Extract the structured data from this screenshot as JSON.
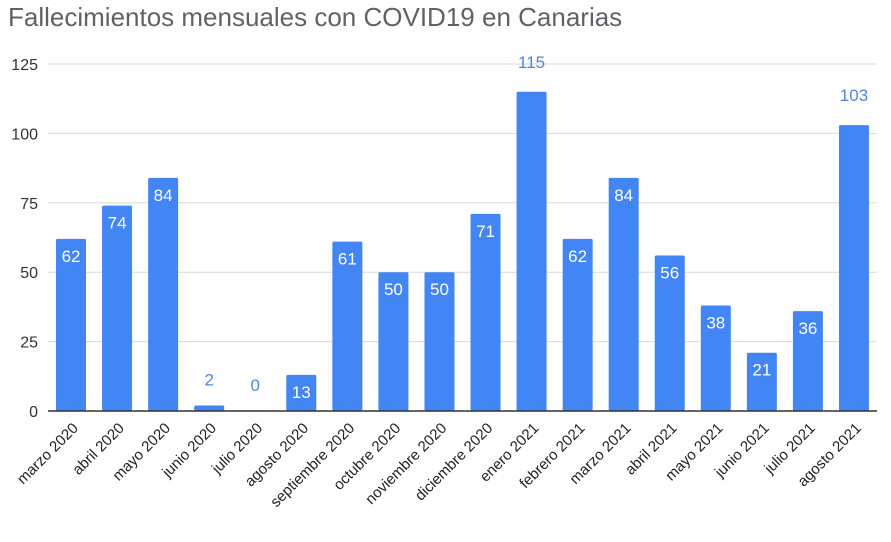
{
  "chart_data": {
    "type": "bar",
    "title": "Fallecimientos mensuales con COVID19 en Canarias",
    "xlabel": "",
    "ylabel": "",
    "ylim": [
      0,
      125
    ],
    "yticks": [
      0,
      25,
      50,
      75,
      100,
      125
    ],
    "grid": true,
    "legend": "none",
    "categories": [
      "marzo 2020",
      "abril 2020",
      "mayo 2020",
      "junio 2020",
      "julio 2020",
      "agosto 2020",
      "septiembre 2020",
      "octubre 2020",
      "noviembre 2020",
      "diciembre 2020",
      "enero 2021",
      "febrero 2021",
      "marzo 2021",
      "abril 2021",
      "mayo 2021",
      "junio 2021",
      "julio 2021",
      "agosto 2021"
    ],
    "values": [
      62,
      74,
      84,
      2,
      0,
      13,
      61,
      50,
      50,
      71,
      115,
      62,
      84,
      56,
      38,
      21,
      36,
      103
    ],
    "colors": {
      "bar": "#4285f4",
      "outside_label": "#4a86e8",
      "grid": "#d9d9d9",
      "axis": "#333333"
    }
  }
}
